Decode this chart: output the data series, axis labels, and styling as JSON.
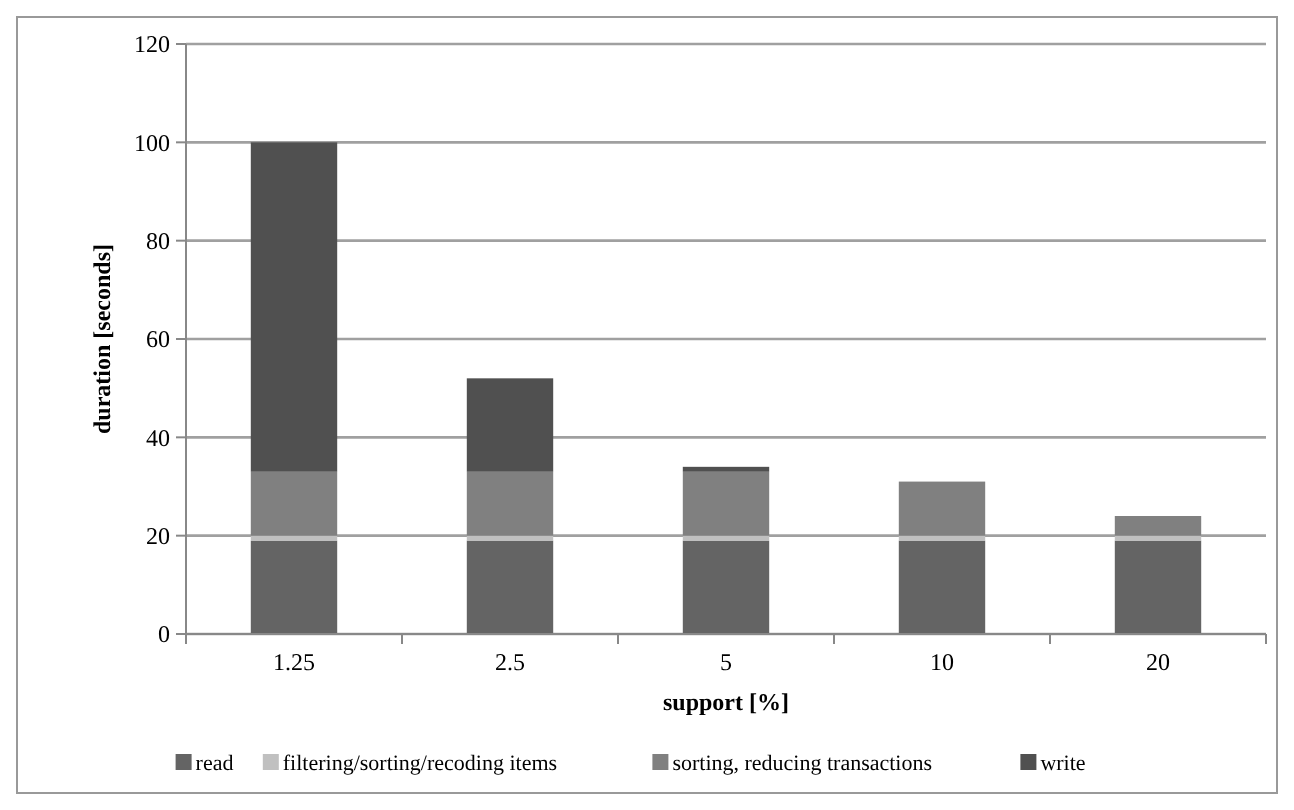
{
  "chart_data": {
    "type": "bar",
    "stacked": true,
    "xlabel": "support [%]",
    "ylabel": "duration [seconds]",
    "categories": [
      "1.25",
      "2.5",
      "5",
      "10",
      "20"
    ],
    "series": [
      {
        "name": "read",
        "color": "#646464",
        "values": [
          19,
          19,
          19,
          19,
          19
        ]
      },
      {
        "name": "filtering/sorting/recoding items",
        "color": "#c0c0c0",
        "values": [
          1,
          1,
          1,
          1,
          1
        ]
      },
      {
        "name": "sorting, reducing transactions",
        "color": "#808080",
        "values": [
          13,
          13,
          13,
          11,
          4
        ]
      },
      {
        "name": "write",
        "color": "#505050",
        "values": [
          67,
          19,
          1,
          0,
          0
        ]
      }
    ],
    "ylim": [
      0,
      120
    ],
    "yticks": [
      0,
      20,
      40,
      60,
      80,
      100,
      120
    ],
    "grid": "y",
    "legend": "bottom"
  }
}
